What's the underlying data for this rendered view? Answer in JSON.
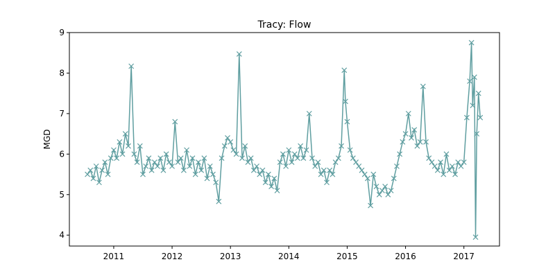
{
  "chart_data": {
    "type": "line",
    "title": "Tracy: Flow",
    "y_label": "MGD",
    "x": [
      2010.55,
      2010.6,
      2010.65,
      2010.7,
      2010.75,
      2010.8,
      2010.85,
      2010.9,
      2010.95,
      2011.0,
      2011.05,
      2011.1,
      2011.15,
      2011.2,
      2011.25,
      2011.3,
      2011.35,
      2011.4,
      2011.45,
      2011.5,
      2011.55,
      2011.6,
      2011.65,
      2011.7,
      2011.75,
      2011.8,
      2011.85,
      2011.9,
      2011.95,
      2012.0,
      2012.05,
      2012.1,
      2012.15,
      2012.2,
      2012.25,
      2012.3,
      2012.35,
      2012.4,
      2012.45,
      2012.5,
      2012.55,
      2012.6,
      2012.65,
      2012.7,
      2012.75,
      2012.8,
      2012.85,
      2012.9,
      2012.95,
      2013.0,
      2013.05,
      2013.1,
      2013.15,
      2013.2,
      2013.25,
      2013.3,
      2013.35,
      2013.4,
      2013.45,
      2013.5,
      2013.55,
      2013.6,
      2013.65,
      2013.7,
      2013.75,
      2013.8,
      2013.85,
      2013.9,
      2013.95,
      2014.0,
      2014.05,
      2014.1,
      2014.15,
      2014.2,
      2014.25,
      2014.3,
      2014.35,
      2014.4,
      2014.45,
      2014.5,
      2014.55,
      2014.6,
      2014.65,
      2014.7,
      2014.75,
      2014.8,
      2014.85,
      2014.9,
      2014.95,
      2014.97,
      2015.0,
      2015.05,
      2015.1,
      2015.15,
      2015.2,
      2015.25,
      2015.3,
      2015.35,
      2015.4,
      2015.45,
      2015.5,
      2015.55,
      2015.6,
      2015.65,
      2015.7,
      2015.75,
      2015.8,
      2015.85,
      2015.9,
      2015.95,
      2016.0,
      2016.05,
      2016.1,
      2016.15,
      2016.2,
      2016.25,
      2016.3,
      2016.35,
      2016.4,
      2016.45,
      2016.5,
      2016.55,
      2016.6,
      2016.65,
      2016.7,
      2016.75,
      2016.8,
      2016.85,
      2016.9,
      2016.95,
      2017.0,
      2017.05,
      2017.1,
      2017.13,
      2017.15,
      2017.18,
      2017.2,
      2017.22,
      2017.25,
      2017.28
    ],
    "series": [
      {
        "color": "#5f9ea0",
        "marker": "x",
        "values": [
          5.5,
          5.6,
          5.4,
          5.7,
          5.3,
          5.6,
          5.8,
          5.5,
          5.9,
          6.1,
          5.9,
          6.3,
          6.0,
          6.5,
          6.2,
          8.17,
          6.0,
          5.8,
          6.2,
          5.5,
          5.7,
          5.9,
          5.6,
          5.8,
          5.7,
          5.9,
          5.6,
          6.0,
          5.8,
          5.7,
          6.8,
          5.8,
          5.9,
          5.6,
          6.1,
          5.7,
          5.9,
          5.5,
          5.8,
          5.6,
          5.9,
          5.4,
          5.7,
          5.5,
          5.3,
          4.83,
          5.9,
          6.2,
          6.4,
          6.3,
          6.1,
          6.0,
          8.47,
          5.9,
          6.2,
          5.8,
          5.9,
          5.6,
          5.7,
          5.5,
          5.6,
          5.3,
          5.5,
          5.2,
          5.4,
          5.1,
          5.8,
          6.0,
          5.7,
          6.1,
          5.8,
          6.0,
          5.9,
          6.2,
          5.9,
          6.1,
          7.0,
          5.9,
          5.7,
          5.8,
          5.5,
          5.6,
          5.3,
          5.6,
          5.5,
          5.8,
          5.9,
          6.2,
          8.07,
          7.3,
          6.8,
          6.1,
          5.9,
          5.8,
          5.7,
          5.6,
          5.5,
          5.4,
          4.73,
          5.5,
          5.2,
          5.0,
          5.1,
          5.2,
          5.0,
          5.1,
          5.4,
          5.7,
          6.0,
          6.3,
          6.5,
          7.0,
          6.4,
          6.6,
          6.2,
          6.3,
          7.67,
          6.3,
          5.9,
          5.8,
          5.7,
          5.6,
          5.8,
          5.5,
          6.0,
          5.6,
          5.7,
          5.5,
          5.8,
          5.7,
          5.8,
          6.9,
          7.8,
          8.75,
          7.2,
          7.9,
          3.95,
          6.5,
          7.5,
          6.9
        ]
      }
    ],
    "xlim": [
      2010.24,
      2017.61
    ],
    "xticks": [
      2011,
      2012,
      2013,
      2014,
      2015,
      2016,
      2017
    ],
    "ylim": [
      3.73,
      9
    ],
    "yticks": [
      4,
      5,
      6,
      7,
      8,
      9
    ],
    "grid": false
  }
}
